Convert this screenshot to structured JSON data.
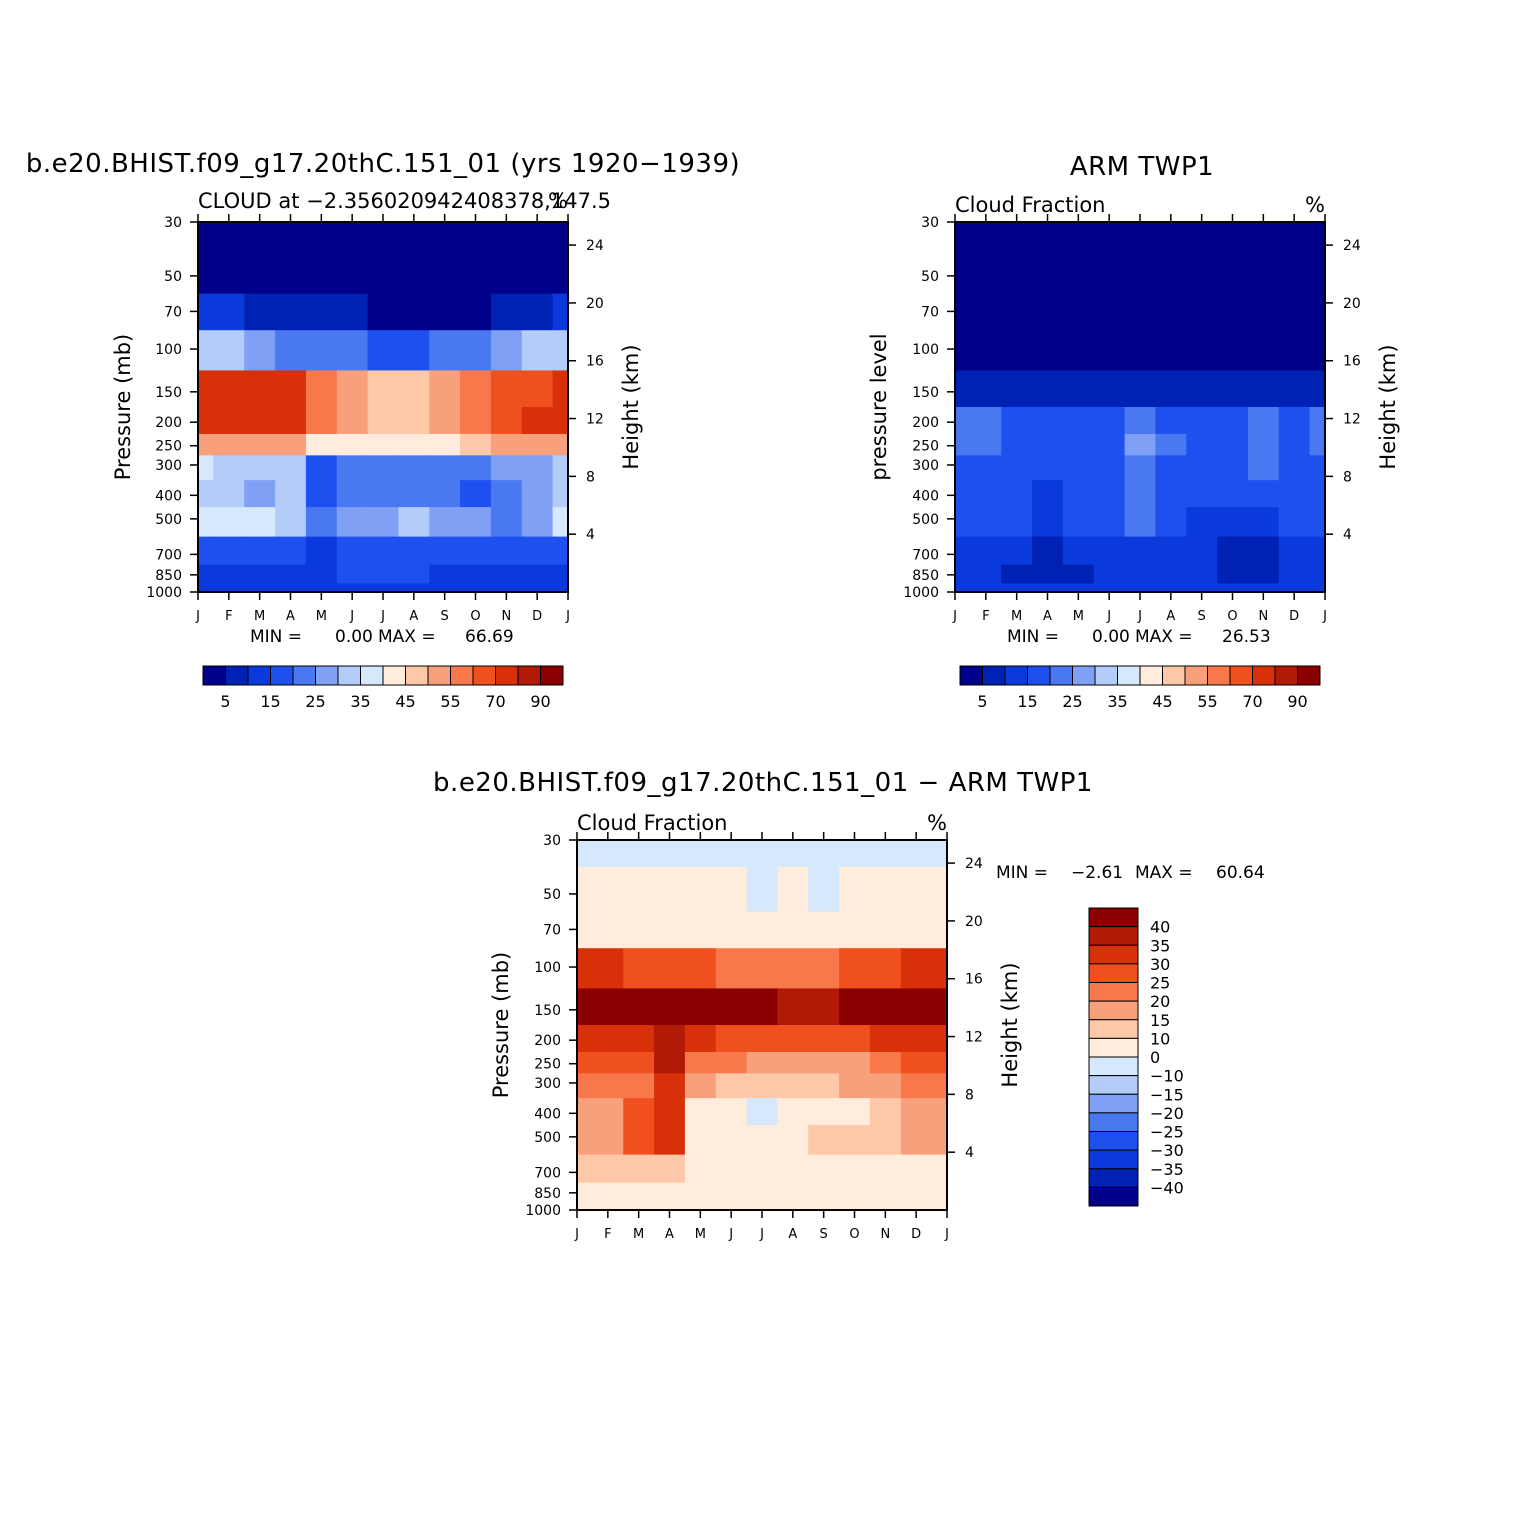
{
  "chart_data": [
    {
      "type": "heatmap",
      "title": "b.e20.BHIST.f09_g17.20thC.151_01 (yrs 1920−1939)",
      "subtitle_left": "CLOUD at −2.356020942408378,147.5",
      "subtitle_right": "%",
      "ylabel": "Pressure (mb)",
      "ylabel_right": "Height (km)",
      "x_ticks": [
        "J",
        "F",
        "M",
        "A",
        "M",
        "J",
        "J",
        "A",
        "S",
        "O",
        "N",
        "D",
        "J"
      ],
      "y_ticks": [
        30,
        50,
        70,
        100,
        150,
        200,
        250,
        300,
        400,
        500,
        700,
        850,
        1000
      ],
      "y_right_ticks": [
        24,
        20,
        16,
        12,
        8,
        4
      ],
      "ylim": [
        30,
        1000
      ],
      "y_scale": "log",
      "stats": {
        "min_label": "MIN =",
        "min": "0.00",
        "max_label": "MAX =",
        "max": "66.69"
      },
      "colorbar_labels": [
        "5",
        "15",
        "25",
        "35",
        "45",
        "55",
        "70",
        "90"
      ],
      "colorbar_colors": [
        "#00008a",
        "#0022b4",
        "#0a3adc",
        "#1e50f0",
        "#4a78f0",
        "#7fa0f5",
        "#b3ccfa",
        "#d6e8fc",
        "#ffecdc",
        "#fcc8a8",
        "#f8a07c",
        "#f8784c",
        "#f0501e",
        "#d83008",
        "#b01a06",
        "#8a0000"
      ],
      "grid": [
        [
          0,
          0,
          0,
          0,
          0,
          0,
          0,
          0,
          0,
          0,
          0,
          0,
          0
        ],
        [
          0,
          0,
          0,
          0,
          0,
          0,
          0,
          0,
          0,
          0,
          0,
          0,
          0
        ],
        [
          2,
          2,
          1,
          1,
          1,
          1,
          0,
          0,
          0,
          0,
          1,
          1,
          2
        ],
        [
          6,
          6,
          5,
          4,
          4,
          4,
          3,
          3,
          4,
          4,
          5,
          6,
          6
        ],
        [
          13,
          13,
          13,
          13,
          11,
          10,
          9,
          9,
          10,
          11,
          12,
          12,
          13
        ],
        [
          13,
          13,
          13,
          13,
          11,
          10,
          9,
          9,
          10,
          11,
          12,
          13,
          13
        ],
        [
          10,
          10,
          10,
          10,
          8,
          8,
          8,
          8,
          8,
          9,
          10,
          10,
          10
        ],
        [
          7,
          6,
          6,
          6,
          3,
          4,
          4,
          4,
          4,
          4,
          5,
          5,
          6
        ],
        [
          6,
          6,
          5,
          6,
          3,
          4,
          4,
          4,
          4,
          3,
          4,
          5,
          6
        ],
        [
          7,
          7,
          7,
          6,
          4,
          5,
          5,
          6,
          5,
          5,
          4,
          5,
          7
        ],
        [
          3,
          3,
          3,
          3,
          2,
          3,
          3,
          3,
          3,
          3,
          3,
          3,
          3
        ],
        [
          2,
          2,
          2,
          2,
          2,
          3,
          3,
          3,
          2,
          2,
          2,
          2,
          2
        ],
        [
          2,
          2,
          2,
          2,
          2,
          2,
          2,
          2,
          2,
          2,
          2,
          2,
          2
        ]
      ]
    },
    {
      "type": "heatmap",
      "title": "ARM TWP1",
      "subtitle_left": "Cloud Fraction",
      "subtitle_right": "%",
      "ylabel": "pressure level",
      "ylabel_right": "Height (km)",
      "x_ticks": [
        "J",
        "F",
        "M",
        "A",
        "M",
        "J",
        "J",
        "A",
        "S",
        "O",
        "N",
        "D",
        "J"
      ],
      "y_ticks": [
        30,
        50,
        70,
        100,
        150,
        200,
        250,
        300,
        400,
        500,
        700,
        850,
        1000
      ],
      "y_right_ticks": [
        24,
        20,
        16,
        12,
        8,
        4
      ],
      "ylim": [
        30,
        1000
      ],
      "y_scale": "log",
      "stats": {
        "min_label": "MIN =",
        "min": "0.00",
        "max_label": "MAX =",
        "max": "26.53"
      },
      "colorbar_labels": [
        "5",
        "15",
        "25",
        "35",
        "45",
        "55",
        "70",
        "90"
      ],
      "colorbar_colors": [
        "#00008a",
        "#0022b4",
        "#0a3adc",
        "#1e50f0",
        "#4a78f0",
        "#7fa0f5",
        "#b3ccfa",
        "#d6e8fc",
        "#ffecdc",
        "#fcc8a8",
        "#f8a07c",
        "#f8784c",
        "#f0501e",
        "#d83008",
        "#b01a06",
        "#8a0000"
      ],
      "grid": [
        [
          0,
          0,
          0,
          0,
          0,
          0,
          0,
          0,
          0,
          0,
          0,
          0,
          0
        ],
        [
          0,
          0,
          0,
          0,
          0,
          0,
          0,
          0,
          0,
          0,
          0,
          0,
          0
        ],
        [
          0,
          0,
          0,
          0,
          0,
          0,
          0,
          0,
          0,
          0,
          0,
          0,
          0
        ],
        [
          0,
          0,
          0,
          0,
          0,
          0,
          0,
          0,
          0,
          0,
          0,
          0,
          0
        ],
        [
          1,
          1,
          1,
          1,
          1,
          1,
          1,
          1,
          1,
          1,
          1,
          1,
          1
        ],
        [
          4,
          4,
          3,
          3,
          3,
          3,
          4,
          3,
          3,
          3,
          4,
          3,
          4
        ],
        [
          4,
          4,
          3,
          3,
          3,
          3,
          5,
          4,
          3,
          3,
          4,
          3,
          4
        ],
        [
          3,
          3,
          3,
          3,
          3,
          3,
          4,
          3,
          3,
          3,
          4,
          3,
          3
        ],
        [
          3,
          3,
          3,
          2,
          3,
          3,
          4,
          3,
          3,
          3,
          3,
          3,
          3
        ],
        [
          3,
          3,
          3,
          2,
          3,
          3,
          4,
          3,
          2,
          2,
          2,
          3,
          3
        ],
        [
          2,
          2,
          2,
          1,
          2,
          2,
          2,
          2,
          2,
          1,
          1,
          2,
          2
        ],
        [
          2,
          2,
          1,
          1,
          1,
          2,
          2,
          2,
          2,
          1,
          1,
          2,
          2
        ],
        [
          2,
          2,
          2,
          2,
          2,
          2,
          2,
          2,
          2,
          2,
          2,
          2,
          2
        ]
      ]
    },
    {
      "type": "heatmap",
      "title": "b.e20.BHIST.f09_g17.20thC.151_01 − ARM TWP1",
      "subtitle_left": "Cloud Fraction",
      "subtitle_right": "%",
      "ylabel": "Pressure (mb)",
      "ylabel_right": "Height (km)",
      "x_ticks": [
        "J",
        "F",
        "M",
        "A",
        "M",
        "J",
        "J",
        "A",
        "S",
        "O",
        "N",
        "D",
        "J"
      ],
      "y_ticks": [
        30,
        50,
        70,
        100,
        150,
        200,
        250,
        300,
        400,
        500,
        700,
        850,
        1000
      ],
      "y_right_ticks": [
        24,
        20,
        16,
        12,
        8,
        4
      ],
      "ylim": [
        30,
        1000
      ],
      "y_scale": "log",
      "stats": {
        "min_label": "MIN =",
        "min": "−2.61",
        "max_label": "MAX =",
        "max": "60.64"
      },
      "colorbar_labels": [
        "40",
        "35",
        "30",
        "25",
        "20",
        "15",
        "10",
        "0",
        "−10",
        "−15",
        "−20",
        "−25",
        "−30",
        "−35",
        "−40"
      ],
      "colorbar_colors": [
        "#8a0000",
        "#b01a06",
        "#d83008",
        "#f0501e",
        "#f8784c",
        "#f8a07c",
        "#fcc8a8",
        "#ffecdc",
        "#d6e8fc",
        "#b3ccfa",
        "#7fa0f5",
        "#4a78f0",
        "#1e50f0",
        "#0a3adc",
        "#0022b4",
        "#00008a"
      ],
      "grid": [
        [
          8,
          8,
          8,
          8,
          8,
          8,
          8,
          8,
          8,
          8,
          8,
          8,
          8
        ],
        [
          7,
          7,
          7,
          7,
          7,
          7,
          8,
          7,
          8,
          7,
          7,
          7,
          7
        ],
        [
          7,
          7,
          7,
          7,
          7,
          7,
          7,
          7,
          7,
          7,
          7,
          7,
          7
        ],
        [
          2,
          2,
          3,
          3,
          3,
          4,
          4,
          4,
          4,
          3,
          3,
          2,
          2
        ],
        [
          0,
          0,
          0,
          0,
          0,
          0,
          0,
          1,
          1,
          0,
          0,
          0,
          0
        ],
        [
          2,
          2,
          2,
          1,
          2,
          3,
          3,
          3,
          3,
          3,
          2,
          2,
          2
        ],
        [
          3,
          3,
          3,
          1,
          4,
          4,
          5,
          5,
          5,
          5,
          4,
          3,
          3
        ],
        [
          4,
          4,
          4,
          2,
          5,
          6,
          6,
          6,
          6,
          5,
          5,
          4,
          4
        ],
        [
          5,
          5,
          3,
          2,
          7,
          7,
          8,
          7,
          7,
          7,
          6,
          5,
          5
        ],
        [
          5,
          5,
          3,
          2,
          7,
          7,
          7,
          7,
          6,
          6,
          6,
          5,
          5
        ],
        [
          6,
          6,
          6,
          6,
          7,
          7,
          7,
          7,
          7,
          7,
          7,
          7,
          7
        ],
        [
          7,
          7,
          7,
          7,
          7,
          7,
          7,
          7,
          7,
          7,
          7,
          7,
          7
        ],
        [
          7,
          7,
          7,
          7,
          7,
          7,
          7,
          7,
          7,
          7,
          7,
          7,
          7
        ]
      ]
    }
  ]
}
